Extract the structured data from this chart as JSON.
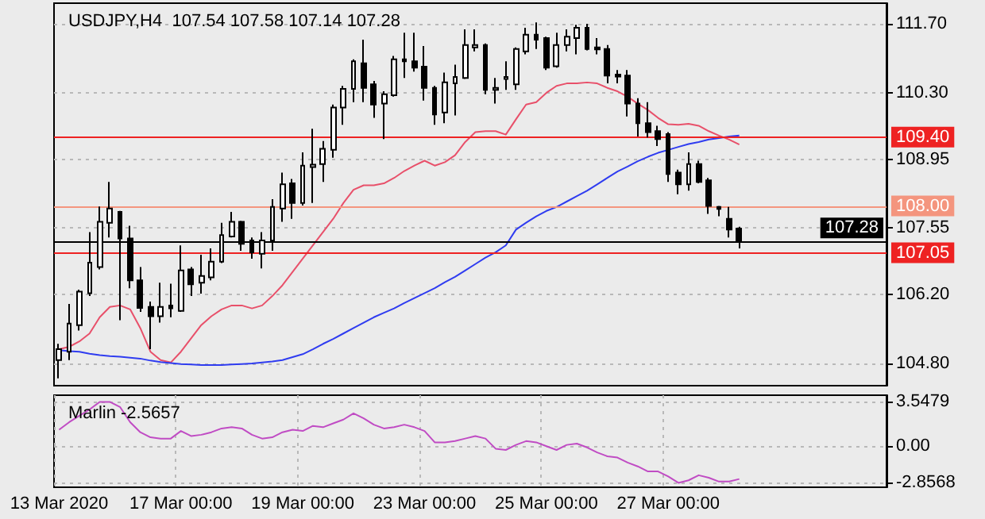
{
  "chart_data": [
    {
      "type": "candlestick",
      "title": "USDJPY,H4  107.54 107.58 107.14 107.28",
      "categories": [
        null,
        null,
        null,
        null,
        null,
        null,
        null,
        null,
        null,
        null,
        null,
        null,
        null,
        null,
        null,
        null,
        null,
        null,
        null,
        null,
        null,
        null,
        null,
        null,
        null,
        null,
        null,
        null,
        null,
        null,
        null,
        null,
        null,
        null,
        null,
        null,
        null,
        null,
        null,
        null,
        null,
        null,
        null,
        null,
        null,
        null,
        null,
        null,
        null,
        null,
        null,
        null,
        null,
        null,
        null,
        null,
        null,
        null,
        null,
        null,
        null,
        null,
        null,
        null,
        null,
        null,
        null,
        null
      ],
      "ohlc": [
        [
          104.87,
          105.2,
          104.5,
          105.09
        ],
        [
          105.04,
          106.01,
          104.87,
          105.61
        ],
        [
          105.58,
          106.3,
          105.47,
          106.26
        ],
        [
          106.23,
          107.47,
          106.17,
          106.85
        ],
        [
          106.76,
          107.99,
          106.71,
          107.68
        ],
        [
          107.66,
          108.49,
          107.36,
          107.95
        ],
        [
          107.88,
          107.9,
          105.68,
          107.34
        ],
        [
          107.34,
          107.6,
          106.33,
          106.49
        ],
        [
          106.49,
          106.76,
          105.85,
          105.93
        ],
        [
          105.95,
          106.06,
          105.09,
          105.76
        ],
        [
          105.76,
          106.44,
          105.63,
          105.95
        ],
        [
          105.98,
          106.42,
          105.74,
          105.92
        ],
        [
          105.87,
          107.2,
          105.85,
          106.69
        ],
        [
          106.71,
          106.76,
          106.17,
          106.41
        ],
        [
          106.44,
          107.01,
          106.22,
          106.58
        ],
        [
          106.55,
          107.14,
          106.49,
          106.87
        ],
        [
          106.87,
          107.66,
          106.84,
          107.41
        ],
        [
          107.38,
          107.88,
          107.36,
          107.68
        ],
        [
          107.68,
          107.7,
          107.09,
          107.23
        ],
        [
          107.3,
          107.36,
          106.93,
          107.06
        ],
        [
          107.03,
          107.47,
          106.73,
          107.3
        ],
        [
          107.3,
          108.14,
          107.09,
          107.98
        ],
        [
          107.95,
          108.68,
          107.68,
          108.44
        ],
        [
          108.46,
          108.55,
          107.74,
          108.06
        ],
        [
          108.06,
          109.09,
          108.01,
          108.82
        ],
        [
          108.79,
          109.57,
          108.06,
          108.84
        ],
        [
          108.85,
          109.32,
          108.49,
          109.16
        ],
        [
          109.14,
          110.06,
          108.98,
          110.0
        ],
        [
          110.0,
          110.44,
          109.65,
          110.38
        ],
        [
          110.38,
          110.98,
          110.11,
          110.94
        ],
        [
          110.9,
          111.38,
          110.11,
          110.4
        ],
        [
          110.47,
          110.54,
          109.79,
          110.06
        ],
        [
          110.08,
          110.33,
          109.36,
          110.27
        ],
        [
          110.25,
          111.05,
          110.22,
          110.98
        ],
        [
          110.98,
          111.52,
          110.6,
          110.94
        ],
        [
          110.94,
          111.52,
          110.73,
          110.81
        ],
        [
          110.83,
          111.25,
          110.14,
          110.4
        ],
        [
          110.4,
          110.44,
          109.65,
          109.86
        ],
        [
          109.9,
          110.71,
          109.68,
          110.51
        ],
        [
          110.49,
          110.87,
          109.84,
          110.62
        ],
        [
          110.6,
          111.59,
          110.58,
          111.27
        ],
        [
          111.22,
          111.59,
          111.14,
          111.27
        ],
        [
          111.27,
          111.3,
          110.27,
          110.36
        ],
        [
          110.36,
          110.6,
          110.08,
          110.4
        ],
        [
          110.58,
          110.94,
          110.36,
          110.62
        ],
        [
          110.47,
          111.22,
          110.36,
          111.19
        ],
        [
          111.14,
          111.62,
          111.08,
          111.48
        ],
        [
          111.48,
          111.73,
          111.19,
          111.38
        ],
        [
          111.41,
          111.44,
          110.76,
          110.81
        ],
        [
          110.84,
          111.52,
          110.81,
          111.27
        ],
        [
          111.27,
          111.59,
          111.14,
          111.44
        ],
        [
          111.41,
          111.68,
          111.08,
          111.62
        ],
        [
          111.62,
          111.7,
          111.16,
          111.19
        ],
        [
          111.22,
          111.41,
          111.08,
          111.18
        ],
        [
          111.19,
          111.27,
          110.49,
          110.65
        ],
        [
          110.67,
          110.76,
          110.49,
          110.63
        ],
        [
          110.65,
          110.76,
          109.82,
          110.08
        ],
        [
          110.08,
          110.19,
          109.41,
          109.68
        ],
        [
          109.68,
          110.11,
          109.39,
          109.5
        ],
        [
          109.52,
          109.63,
          109.22,
          109.36
        ],
        [
          109.46,
          109.5,
          108.49,
          108.65
        ],
        [
          108.68,
          108.74,
          108.24,
          108.44
        ],
        [
          108.44,
          109.09,
          108.31,
          108.85
        ],
        [
          108.85,
          108.92,
          108.46,
          108.49
        ],
        [
          108.52,
          108.57,
          107.84,
          108.0
        ],
        [
          107.98,
          108.0,
          107.79,
          107.94
        ],
        [
          107.74,
          107.98,
          107.36,
          107.52
        ],
        [
          107.54,
          107.58,
          107.14,
          107.28
        ]
      ],
      "series": [
        {
          "type": "line",
          "color": "#e8506a",
          "values": [
            105.09,
            105.14,
            105.25,
            105.41,
            105.74,
            105.95,
            105.98,
            105.9,
            105.52,
            105.04,
            104.87,
            104.82,
            105.04,
            105.31,
            105.58,
            105.76,
            105.9,
            105.98,
            105.98,
            105.92,
            105.98,
            106.17,
            106.39,
            106.66,
            106.93,
            107.2,
            107.47,
            107.74,
            108.06,
            108.33,
            108.42,
            108.42,
            108.46,
            108.57,
            108.71,
            108.82,
            108.92,
            108.82,
            108.89,
            109.03,
            109.3,
            109.5,
            109.52,
            109.52,
            109.45,
            109.76,
            110.06,
            110.11,
            110.3,
            110.44,
            110.49,
            110.49,
            110.51,
            110.49,
            110.4,
            110.33,
            110.22,
            110.08,
            109.95,
            109.79,
            109.66,
            109.65,
            109.67,
            109.63,
            109.52,
            109.43,
            109.35,
            109.25
          ]
        },
        {
          "type": "line",
          "color": "#2f3cf0",
          "values": [
            105.07,
            105.05,
            105.04,
            105.0,
            104.97,
            104.95,
            104.94,
            104.92,
            104.9,
            104.86,
            104.83,
            104.81,
            104.79,
            104.78,
            104.77,
            104.77,
            104.77,
            104.78,
            104.79,
            104.8,
            104.82,
            104.84,
            104.87,
            104.93,
            104.99,
            105.09,
            105.2,
            105.3,
            105.41,
            105.52,
            105.63,
            105.74,
            105.83,
            105.92,
            106.03,
            106.13,
            106.23,
            106.33,
            106.45,
            106.56,
            106.69,
            106.82,
            106.95,
            107.06,
            107.2,
            107.52,
            107.66,
            107.79,
            107.9,
            107.98,
            108.09,
            108.2,
            108.31,
            108.44,
            108.57,
            108.7,
            108.8,
            108.91,
            109.0,
            109.08,
            109.14,
            109.2,
            109.26,
            109.3,
            109.35,
            109.38,
            109.41,
            109.43
          ]
        }
      ],
      "ylim": [
        104.35,
        112.12
      ],
      "yticks": [
        {
          "value": 111.7,
          "label": "111.70"
        },
        {
          "value": 110.3,
          "label": "110.30"
        },
        108.95,
        107.55,
        {
          "value": 106.2,
          "label": "106.20"
        },
        {
          "value": 104.8,
          "label": "104.80"
        }
      ],
      "ref_lines": [
        {
          "axis": "y",
          "value": 109.4,
          "label": "109.40",
          "color": "#ee2222"
        },
        {
          "axis": "y",
          "value": 108.0,
          "label": "108.00",
          "color": "#f4957e"
        },
        {
          "axis": "y",
          "value": 107.05,
          "label": "107.05",
          "color": "#ee2222"
        },
        {
          "axis": "y",
          "value": 107.28,
          "label": "107.28",
          "color": "#000000"
        }
      ],
      "grid": true,
      "tick_labels": "y"
    },
    {
      "type": "line",
      "title": "Marlin -2.5657",
      "categories": [
        "13 Mar 2020",
        null,
        null,
        null,
        null,
        null,
        null,
        null,
        null,
        null,
        null,
        null,
        "17 Mar 00:00",
        null,
        null,
        null,
        null,
        null,
        null,
        null,
        null,
        null,
        null,
        null,
        "19 Mar 00:00",
        null,
        null,
        null,
        null,
        null,
        null,
        null,
        null,
        null,
        null,
        null,
        "23 Mar 00:00",
        null,
        null,
        null,
        null,
        null,
        null,
        null,
        null,
        null,
        null,
        null,
        "25 Mar 00:00",
        null,
        null,
        null,
        null,
        null,
        null,
        null,
        null,
        null,
        null,
        null,
        "27 Mar 00:00",
        null,
        null,
        null,
        null,
        null,
        null,
        null
      ],
      "series": [
        {
          "color": "#c04cc4",
          "values": [
            1.3,
            1.9,
            2.4,
            2.9,
            3.5,
            3.5,
            3.1,
            1.9,
            1.1,
            0.7,
            0.6,
            0.6,
            1.2,
            0.8,
            0.9,
            1.1,
            1.4,
            1.5,
            1.4,
            0.9,
            0.6,
            0.7,
            1.1,
            1.3,
            1.2,
            1.6,
            1.5,
            1.8,
            2.1,
            2.6,
            2.2,
            1.7,
            1.4,
            1.5,
            1.7,
            1.5,
            1.2,
            0.3,
            0.3,
            0.4,
            0.6,
            0.8,
            0.6,
            -0.2,
            -0.3,
            0.1,
            0.4,
            0.3,
            0.0,
            -0.3,
            0.1,
            0.2,
            -0.1,
            -0.5,
            -0.8,
            -0.9,
            -1.3,
            -1.6,
            -2.0,
            -2.0,
            -2.4,
            -2.9,
            -2.7,
            -2.3,
            -2.5,
            -2.8,
            -2.8,
            -2.6
          ]
        }
      ],
      "ylim": [
        -3.25,
        4.03
      ],
      "yticks": [
        3.5479,
        {
          "value": 0,
          "label": "0.00"
        },
        -2.8568
      ],
      "grid": true
    }
  ]
}
